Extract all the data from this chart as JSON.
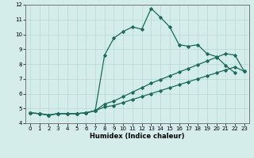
{
  "title": "",
  "xlabel": "Humidex (Indice chaleur)",
  "xlim": [
    -0.5,
    23.5
  ],
  "ylim": [
    4,
    12
  ],
  "xticks": [
    0,
    1,
    2,
    3,
    4,
    5,
    6,
    7,
    8,
    9,
    10,
    11,
    12,
    13,
    14,
    15,
    16,
    17,
    18,
    19,
    20,
    21,
    22,
    23
  ],
  "yticks": [
    4,
    5,
    6,
    7,
    8,
    9,
    10,
    11,
    12
  ],
  "background_color": "#d4ecea",
  "grid_color": "#b8d8d4",
  "line_color": "#1a6b5a",
  "line1_x": [
    0,
    1,
    2,
    3,
    4,
    5,
    6,
    7,
    8,
    9,
    10,
    11,
    12,
    13,
    14,
    15,
    16,
    17,
    18,
    19,
    20,
    21,
    22
  ],
  "line1_y": [
    4.7,
    4.65,
    4.55,
    4.65,
    4.65,
    4.65,
    4.7,
    4.85,
    8.6,
    9.75,
    10.2,
    10.5,
    10.35,
    11.75,
    11.15,
    10.5,
    9.3,
    9.2,
    9.3,
    8.7,
    8.5,
    7.9,
    7.4
  ],
  "line2_x": [
    0,
    1,
    2,
    3,
    4,
    5,
    6,
    7,
    8,
    9,
    10,
    11,
    12,
    13,
    14,
    15,
    16,
    17,
    18,
    19,
    20,
    21,
    22,
    23
  ],
  "line2_y": [
    4.7,
    4.65,
    4.55,
    4.65,
    4.65,
    4.65,
    4.7,
    4.85,
    5.3,
    5.5,
    5.8,
    6.1,
    6.4,
    6.7,
    6.95,
    7.2,
    7.45,
    7.7,
    7.95,
    8.2,
    8.45,
    8.7,
    8.6,
    7.5
  ],
  "line3_x": [
    0,
    1,
    2,
    3,
    4,
    5,
    6,
    7,
    8,
    9,
    10,
    11,
    12,
    13,
    14,
    15,
    16,
    17,
    18,
    19,
    20,
    21,
    22,
    23
  ],
  "line3_y": [
    4.7,
    4.65,
    4.55,
    4.65,
    4.65,
    4.65,
    4.7,
    4.85,
    5.1,
    5.2,
    5.4,
    5.6,
    5.8,
    6.0,
    6.2,
    6.4,
    6.6,
    6.8,
    7.0,
    7.2,
    7.4,
    7.6,
    7.8,
    7.5
  ]
}
